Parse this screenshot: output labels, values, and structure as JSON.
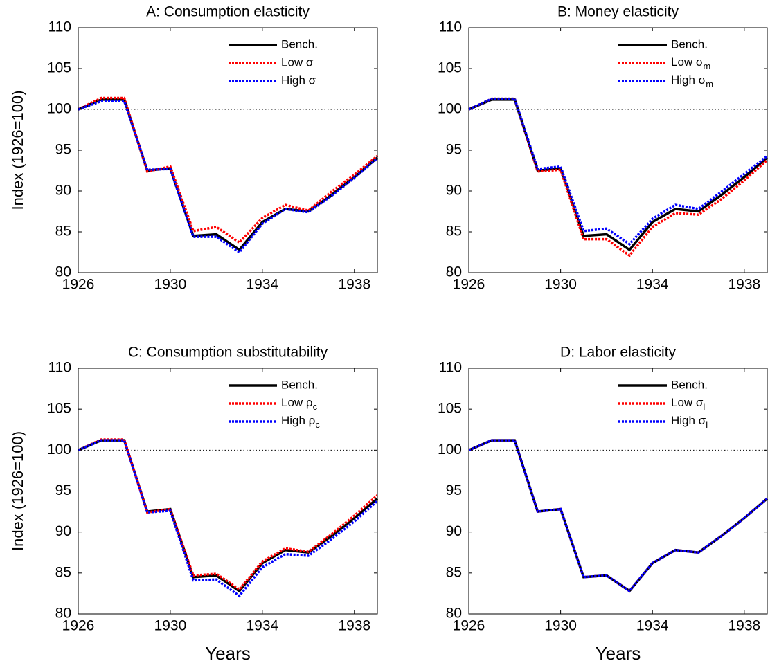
{
  "chart_data": [
    {
      "type": "line",
      "title": "A: Consumption elasticity",
      "ylabel": "Index (1926=100)",
      "x": [
        1926,
        1927,
        1928,
        1929,
        1930,
        1931,
        1932,
        1933,
        1934,
        1935,
        1936,
        1937,
        1938,
        1939
      ],
      "xlim": [
        1926,
        1939
      ],
      "xticks": [
        1926,
        1930,
        1934,
        1938
      ],
      "ylim": [
        80,
        110
      ],
      "yticks": [
        80,
        85,
        90,
        95,
        100,
        105,
        110
      ],
      "hline": 100,
      "legend": "upper right",
      "series": [
        {
          "name": "Bench.",
          "color": "#000000",
          "linestyle": "solid",
          "values": [
            100,
            101.2,
            101.2,
            92.5,
            92.8,
            84.5,
            84.7,
            82.8,
            86.2,
            87.8,
            87.5,
            89.5,
            91.7,
            94.1
          ]
        },
        {
          "name": "Low σ",
          "color": "#ff0000",
          "linestyle": "dotted",
          "values": [
            100,
            101.4,
            101.4,
            92.4,
            93.0,
            85.1,
            85.6,
            83.7,
            86.7,
            88.3,
            87.6,
            89.9,
            92.0,
            94.3
          ]
        },
        {
          "name": "High σ",
          "color": "#0000ff",
          "linestyle": "dotted",
          "values": [
            100,
            101.0,
            101.0,
            92.6,
            92.7,
            84.4,
            84.4,
            82.5,
            86.0,
            87.8,
            87.4,
            89.4,
            91.6,
            94.0
          ]
        }
      ]
    },
    {
      "type": "line",
      "title": "B: Money elasticity",
      "x": [
        1926,
        1927,
        1928,
        1929,
        1930,
        1931,
        1932,
        1933,
        1934,
        1935,
        1936,
        1937,
        1938,
        1939
      ],
      "xlim": [
        1926,
        1939
      ],
      "xticks": [
        1926,
        1930,
        1934,
        1938
      ],
      "ylim": [
        80,
        110
      ],
      "yticks": [
        80,
        85,
        90,
        95,
        100,
        105,
        110
      ],
      "hline": 100,
      "legend": "upper right",
      "series": [
        {
          "name": "Bench.",
          "color": "#000000",
          "linestyle": "solid",
          "values": [
            100,
            101.2,
            101.2,
            92.5,
            92.8,
            84.5,
            84.7,
            82.8,
            86.2,
            87.8,
            87.5,
            89.5,
            91.7,
            94.1
          ]
        },
        {
          "name": "Low σm",
          "color": "#ff0000",
          "linestyle": "dotted",
          "values": [
            100,
            101.3,
            101.3,
            92.4,
            92.6,
            84.1,
            84.1,
            82.1,
            85.6,
            87.3,
            87.1,
            89.0,
            91.3,
            93.8
          ]
        },
        {
          "name": "High σm",
          "color": "#0000ff",
          "linestyle": "dotted",
          "values": [
            100,
            101.3,
            101.3,
            92.7,
            93.0,
            85.1,
            85.4,
            83.5,
            86.6,
            88.3,
            87.8,
            89.9,
            92.1,
            94.3
          ]
        }
      ]
    },
    {
      "type": "line",
      "title": "C: Consumption substitutability",
      "ylabel": "Index (1926=100)",
      "xlabel": "Years",
      "x": [
        1926,
        1927,
        1928,
        1929,
        1930,
        1931,
        1932,
        1933,
        1934,
        1935,
        1936,
        1937,
        1938,
        1939
      ],
      "xlim": [
        1926,
        1939
      ],
      "xticks": [
        1926,
        1930,
        1934,
        1938
      ],
      "ylim": [
        80,
        110
      ],
      "yticks": [
        80,
        85,
        90,
        95,
        100,
        105,
        110
      ],
      "hline": 100,
      "legend": "upper right",
      "series": [
        {
          "name": "Bench.",
          "color": "#000000",
          "linestyle": "solid",
          "values": [
            100,
            101.2,
            101.2,
            92.5,
            92.8,
            84.5,
            84.7,
            82.8,
            86.2,
            87.8,
            87.5,
            89.5,
            91.7,
            94.1
          ]
        },
        {
          "name": "Low ρc",
          "color": "#ff0000",
          "linestyle": "dotted",
          "values": [
            100,
            101.3,
            101.3,
            92.4,
            92.8,
            84.7,
            84.9,
            83.0,
            86.4,
            88.0,
            87.6,
            89.7,
            92.0,
            94.5
          ]
        },
        {
          "name": "High ρc",
          "color": "#0000ff",
          "linestyle": "dotted",
          "values": [
            100,
            101.2,
            101.2,
            92.4,
            92.6,
            84.1,
            84.2,
            82.2,
            85.7,
            87.3,
            87.1,
            89.1,
            91.3,
            93.8
          ]
        }
      ]
    },
    {
      "type": "line",
      "title": "D: Labor elasticity",
      "xlabel": "Years",
      "x": [
        1926,
        1927,
        1928,
        1929,
        1930,
        1931,
        1932,
        1933,
        1934,
        1935,
        1936,
        1937,
        1938,
        1939
      ],
      "xlim": [
        1926,
        1939
      ],
      "xticks": [
        1926,
        1930,
        1934,
        1938
      ],
      "ylim": [
        80,
        110
      ],
      "yticks": [
        80,
        85,
        90,
        95,
        100,
        105,
        110
      ],
      "hline": 100,
      "legend": "upper right",
      "series": [
        {
          "name": "Bench.",
          "color": "#000000",
          "linestyle": "solid",
          "values": [
            100,
            101.2,
            101.2,
            92.5,
            92.8,
            84.5,
            84.7,
            82.8,
            86.2,
            87.8,
            87.5,
            89.5,
            91.7,
            94.1
          ]
        },
        {
          "name": "Low σl",
          "color": "#ff0000",
          "linestyle": "dotted",
          "values": [
            100,
            101.2,
            101.2,
            92.5,
            92.8,
            84.5,
            84.7,
            82.8,
            86.2,
            87.8,
            87.5,
            89.5,
            91.7,
            94.1
          ]
        },
        {
          "name": "High σl",
          "color": "#0000ff",
          "linestyle": "dotted",
          "values": [
            100,
            101.2,
            101.2,
            92.5,
            92.8,
            84.5,
            84.7,
            82.8,
            86.2,
            87.8,
            87.5,
            89.5,
            91.7,
            94.1
          ]
        }
      ]
    }
  ]
}
